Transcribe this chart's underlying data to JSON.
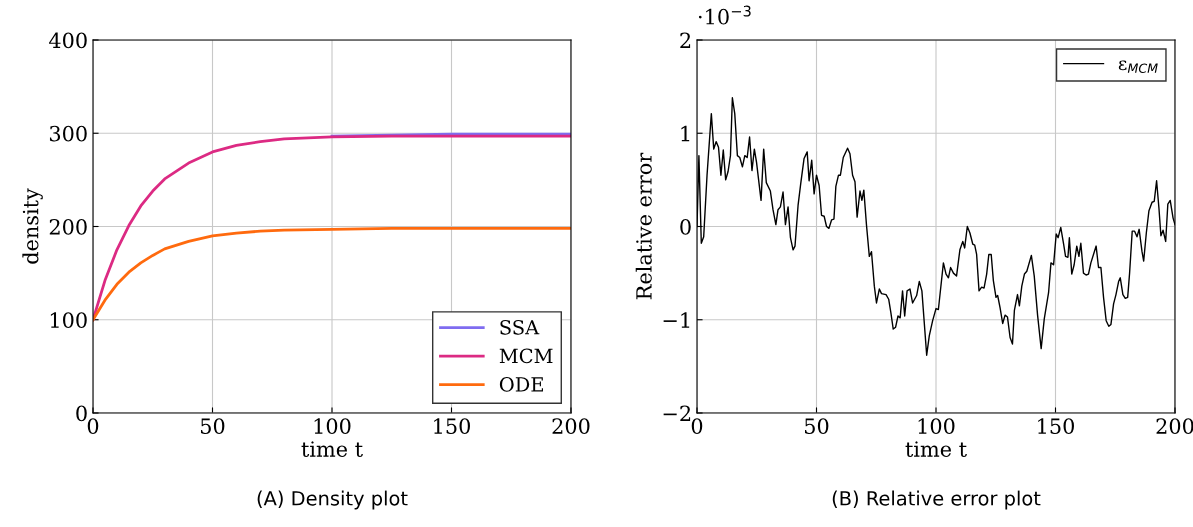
{
  "chart_data": [
    {
      "type": "line",
      "xlabel": "time t",
      "ylabel": "density",
      "annotations": [
        "(A) Density plot"
      ],
      "x": [
        0,
        5,
        10,
        15,
        20,
        25,
        30,
        40,
        50,
        60,
        70,
        80,
        100,
        125,
        150,
        175,
        200
      ],
      "series": [
        {
          "name": "SSA",
          "color": "#7f6cf0",
          "values": [
            null,
            null,
            null,
            null,
            null,
            null,
            null,
            null,
            null,
            null,
            null,
            null,
            297,
            298,
            299,
            299,
            299
          ]
        },
        {
          "name": "MCM",
          "color": "#dc2a83",
          "values": [
            100,
            142,
            175,
            201,
            222,
            238,
            251,
            268,
            280,
            287,
            291,
            294,
            296,
            297,
            297,
            297,
            297
          ]
        },
        {
          "name": "ODE",
          "color": "#ff6a0e",
          "values": [
            100,
            121,
            138,
            151,
            161,
            169,
            176,
            184,
            190,
            193,
            195,
            196,
            197,
            198,
            198,
            198,
            198
          ]
        }
      ],
      "xlim": [
        0,
        200
      ],
      "xticks": [
        0,
        50,
        100,
        150,
        200
      ],
      "ylim": [
        0,
        400
      ],
      "yticks": [
        0,
        100,
        200,
        300,
        400
      ],
      "grid": true,
      "legend": "bottom right"
    },
    {
      "type": "line",
      "xlabel": "time t",
      "ylabel": "Relative error",
      "annotations": [
        "·10$^{−3}$",
        "(B) Relative error plot"
      ],
      "x": [
        0,
        0.8,
        1.8,
        2.8,
        4.2,
        6,
        7,
        8,
        9,
        10,
        11,
        12,
        13,
        14,
        14.8,
        15.8,
        16.9,
        17.9,
        19,
        20,
        21,
        22,
        23,
        24,
        24.9,
        26.8,
        27.9,
        29,
        30.7,
        31.8,
        33,
        33.9,
        34.9,
        36,
        37,
        38.1,
        39.1,
        40.2,
        41,
        42.3,
        43.4,
        44.8,
        46.1,
        46.9,
        48,
        49,
        50,
        51.1,
        52.1,
        53.2,
        54.2,
        55.2,
        56.3,
        57.3,
        58.1,
        59.2,
        60,
        61.2,
        63,
        64,
        65.1,
        66.1,
        67,
        68.2,
        69,
        69.8,
        70.9,
        72.1,
        73,
        74.2,
        75.1,
        76.3,
        77.2,
        79.1,
        80.2,
        81.1,
        82.1,
        83.1,
        84.1,
        85,
        86,
        86.9,
        87.9,
        89.1,
        90.2,
        91.9,
        93,
        94.1,
        96.1,
        97.2,
        98.6,
        100,
        101,
        103.1,
        104.2,
        105.2,
        106.1,
        107.3,
        108.6,
        110,
        111.2,
        112,
        113.1,
        114.2,
        115.4,
        116.2,
        117,
        118,
        119.1,
        120.1,
        121.2,
        122.1,
        123.1,
        124,
        125.1,
        125.8,
        126.8,
        127.9,
        128.9,
        129.9,
        131,
        132,
        132.8,
        134.1,
        134.9,
        135.9,
        137,
        138,
        139.9,
        141.1,
        142.5,
        144,
        145.3,
        147.1,
        148.1,
        149.2,
        150.3,
        151.1,
        152.2,
        153.4,
        154.2,
        155.2,
        155.8,
        156.8,
        157.8,
        158.9,
        159.8,
        160.6,
        161.7,
        162.8,
        163.8,
        164.8,
        167,
        168,
        169,
        170.1,
        171.2,
        172.3,
        173.2,
        174.3,
        175.3,
        176.4,
        177.1,
        178.2,
        179.2,
        180.2,
        181,
        182.1,
        183.1,
        184.1,
        185,
        186.2,
        186.9,
        188,
        189.1,
        190.4,
        191.3,
        192.3,
        193.3,
        194.1,
        195,
        196.1,
        197,
        198,
        199.2,
        200
      ],
      "series": [
        {
          "name": "ε$_{MCM}$",
          "color": "#000000",
          "values": [
            0,
            0.76,
            -0.18,
            -0.11,
            0.55,
            1.21,
            0.83,
            0.91,
            0.85,
            0.55,
            0.82,
            0.5,
            0.59,
            0.76,
            1.38,
            1.21,
            0.76,
            0.74,
            0.64,
            0.76,
            0.74,
            0.96,
            0.6,
            0.83,
            0.69,
            0.28,
            0.83,
            0.47,
            0.38,
            0.18,
            0.02,
            0.18,
            0.21,
            0.37,
            0.02,
            0.21,
            -0.12,
            -0.25,
            -0.21,
            0.23,
            0.46,
            0.73,
            0.8,
            0.49,
            0.71,
            0.35,
            0.55,
            0.44,
            0.12,
            0.11,
            0,
            -0.02,
            0.07,
            0.08,
            0.43,
            0.55,
            0.55,
            0.74,
            0.84,
            0.78,
            0.55,
            0.48,
            0.1,
            0.38,
            0.28,
            0.39,
            0.02,
            -0.32,
            -0.27,
            -0.64,
            -0.82,
            -0.67,
            -0.72,
            -0.73,
            -0.78,
            -0.92,
            -1.1,
            -1.08,
            -0.96,
            -0.98,
            -0.69,
            -0.96,
            -0.69,
            -0.67,
            -0.82,
            -0.74,
            -0.59,
            -0.69,
            -1.38,
            -1.17,
            -1.01,
            -0.88,
            -0.89,
            -0.39,
            -0.51,
            -0.55,
            -0.44,
            -0.5,
            -0.53,
            -0.25,
            -0.16,
            -0.23,
            0,
            -0.07,
            -0.19,
            -0.2,
            -0.3,
            -0.69,
            -0.65,
            -0.66,
            -0.51,
            -0.3,
            -0.3,
            -0.58,
            -0.76,
            -0.74,
            -0.87,
            -1.04,
            -0.95,
            -0.97,
            -1.19,
            -1.26,
            -0.9,
            -0.73,
            -0.85,
            -0.64,
            -0.51,
            -0.48,
            -0.31,
            -0.53,
            -0.95,
            -1.31,
            -0.99,
            -0.71,
            -0.39,
            -0.41,
            -0.08,
            -0.12,
            -0.01,
            -0.19,
            -0.32,
            -0.33,
            -0.12,
            -0.51,
            -0.41,
            -0.21,
            -0.32,
            -0.18,
            -0.5,
            -0.52,
            -0.51,
            -0.39,
            -0.21,
            -0.44,
            -0.44,
            -0.76,
            -1.01,
            -1.07,
            -1.05,
            -0.83,
            -0.73,
            -0.59,
            -0.55,
            -0.73,
            -0.77,
            -0.76,
            -0.5,
            -0.05,
            -0.05,
            -0.11,
            -0.03,
            -0.27,
            -0.37,
            -0.07,
            0.17,
            0.26,
            0.27,
            0.49,
            0.19,
            -0.1,
            -0.04,
            -0.16,
            0.24,
            0.28,
            0.09,
            0.02
          ]
        }
      ],
      "xlim": [
        0,
        200
      ],
      "xticks": [
        0,
        50,
        100,
        150,
        200
      ],
      "ylim": [
        -2,
        2
      ],
      "yticks": [
        {
          "value": -2,
          "label": "−2"
        },
        {
          "value": -1,
          "label": "−1"
        },
        0,
        1,
        2
      ],
      "grid": true,
      "legend": "top right"
    }
  ]
}
